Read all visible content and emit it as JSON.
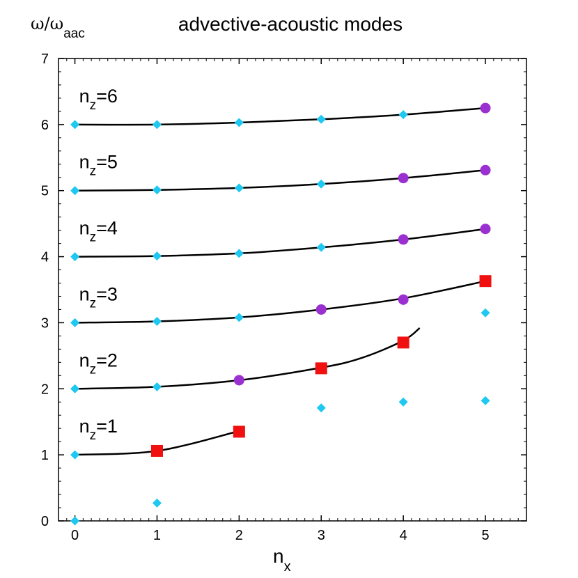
{
  "chart_data": {
    "type": "line",
    "title": "advective-acoustic modes",
    "ylabel": {
      "main": "ω/ω",
      "sub": "aac"
    },
    "xlabel": {
      "main": "n",
      "sub": "x"
    },
    "xlim": [
      -0.2,
      5.5
    ],
    "ylim": [
      0,
      7
    ],
    "xticks": [
      "0",
      "1",
      "2",
      "3",
      "4",
      "5"
    ],
    "yticks": [
      "0",
      "1",
      "2",
      "3",
      "4",
      "5",
      "6",
      "7"
    ],
    "grid": false,
    "colors": {
      "diamond": "#1ec8f0",
      "circle": "#9b30d0",
      "square": "#f01010",
      "curve": "#000000"
    },
    "curves": [
      {
        "label_main": "n",
        "label_sub": "z",
        "label_eq": "=1",
        "x": [
          0,
          1,
          2
        ],
        "y": [
          1.0,
          1.06,
          1.36
        ]
      },
      {
        "label_main": "n",
        "label_sub": "z",
        "label_eq": "=2",
        "x": [
          0,
          1,
          2,
          3,
          3.5,
          4,
          4.2
        ],
        "y": [
          2.0,
          2.03,
          2.13,
          2.32,
          2.47,
          2.73,
          2.92
        ]
      },
      {
        "label_main": "n",
        "label_sub": "z",
        "label_eq": "=3",
        "x": [
          0,
          1,
          2,
          3,
          4,
          5
        ],
        "y": [
          3.0,
          3.02,
          3.08,
          3.2,
          3.37,
          3.63
        ]
      },
      {
        "label_main": "n",
        "label_sub": "z",
        "label_eq": "=4",
        "x": [
          0,
          1,
          2,
          3,
          4,
          5
        ],
        "y": [
          4.0,
          4.01,
          4.05,
          4.14,
          4.26,
          4.42
        ]
      },
      {
        "label_main": "n",
        "label_sub": "z",
        "label_eq": "=5",
        "x": [
          0,
          1,
          2,
          3,
          4,
          5
        ],
        "y": [
          5.0,
          5.01,
          5.04,
          5.1,
          5.19,
          5.31
        ]
      },
      {
        "label_main": "n",
        "label_sub": "z",
        "label_eq": "=6",
        "x": [
          0,
          1,
          2,
          3,
          4,
          5
        ],
        "y": [
          6.0,
          6.0,
          6.03,
          6.08,
          6.15,
          6.25
        ]
      }
    ],
    "diamonds": [
      {
        "x": 0,
        "y": 0.0
      },
      {
        "x": 0,
        "y": 1.0
      },
      {
        "x": 0,
        "y": 2.0
      },
      {
        "x": 0,
        "y": 3.0
      },
      {
        "x": 0,
        "y": 4.0
      },
      {
        "x": 0,
        "y": 5.0
      },
      {
        "x": 0,
        "y": 6.0
      },
      {
        "x": 1,
        "y": 0.27
      },
      {
        "x": 1,
        "y": 2.03
      },
      {
        "x": 1,
        "y": 3.02
      },
      {
        "x": 1,
        "y": 4.01
      },
      {
        "x": 1,
        "y": 5.01
      },
      {
        "x": 1,
        "y": 6.0
      },
      {
        "x": 2,
        "y": 3.08
      },
      {
        "x": 2,
        "y": 4.05
      },
      {
        "x": 2,
        "y": 5.04
      },
      {
        "x": 2,
        "y": 6.03
      },
      {
        "x": 3,
        "y": 1.71
      },
      {
        "x": 3,
        "y": 4.14
      },
      {
        "x": 3,
        "y": 5.1
      },
      {
        "x": 3,
        "y": 6.08
      },
      {
        "x": 4,
        "y": 1.8
      },
      {
        "x": 4,
        "y": 3.33
      },
      {
        "x": 4,
        "y": 6.15
      },
      {
        "x": 5,
        "y": 1.82
      },
      {
        "x": 5,
        "y": 3.15
      }
    ],
    "circles": [
      {
        "x": 2,
        "y": 2.13
      },
      {
        "x": 3,
        "y": 3.2
      },
      {
        "x": 4,
        "y": 3.35
      },
      {
        "x": 4,
        "y": 4.26
      },
      {
        "x": 4,
        "y": 5.19
      },
      {
        "x": 5,
        "y": 4.42
      },
      {
        "x": 5,
        "y": 5.31
      },
      {
        "x": 5,
        "y": 6.25
      }
    ],
    "squares": [
      {
        "x": 1,
        "y": 1.06
      },
      {
        "x": 2,
        "y": 1.35
      },
      {
        "x": 3,
        "y": 2.31
      },
      {
        "x": 4,
        "y": 2.7
      },
      {
        "x": 5,
        "y": 3.63
      }
    ]
  }
}
